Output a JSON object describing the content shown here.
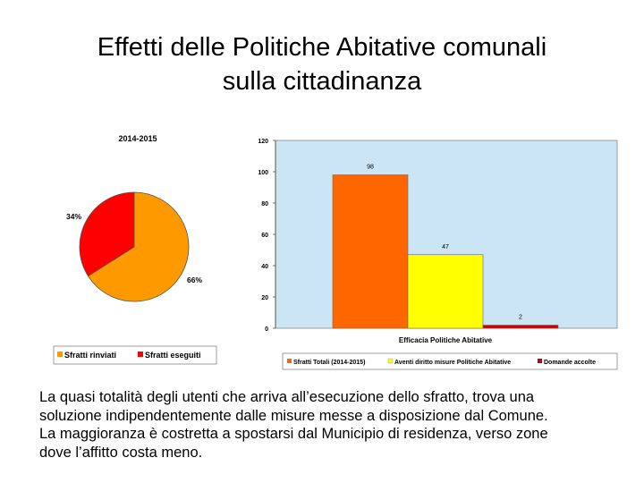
{
  "slide": {
    "title_line1": "Effetti delle Politiche Abitative comunali",
    "title_line2": "sulla cittadinanza"
  },
  "chart_data": [
    {
      "type": "pie",
      "title": "2014-2015",
      "slices": [
        {
          "name": "Sfratti rinviati",
          "value": 66,
          "label": "66%",
          "color": "#ff9900"
        },
        {
          "name": "Sfratti eseguiti",
          "value": 34,
          "label": "34%",
          "color": "#ff0000"
        }
      ],
      "legend": [
        "Sfratti rinviati",
        "Sfratti eseguiti"
      ],
      "legend_position": "bottom",
      "background": "#ffffff"
    },
    {
      "type": "bar",
      "title": "",
      "xlabel": "Efficacia Politiche Abitative",
      "ylabel": "",
      "ylim": [
        0,
        120
      ],
      "yticks": [
        0,
        20,
        40,
        60,
        80,
        100,
        120
      ],
      "series": [
        {
          "name": "Sfratti Totali (2014-2015)",
          "value": 98,
          "label": "98",
          "color": "#ff6600"
        },
        {
          "name": "Aventi diritto misure Politiche Abitative",
          "value": 47,
          "label": "47",
          "color": "#ffff00"
        },
        {
          "name": "Domande accolte",
          "value": 2,
          "label": "2",
          "color": "#cc0000"
        }
      ],
      "legend_position": "bottom",
      "plot_background": "#cce5f5",
      "grid": false
    }
  ],
  "caption": {
    "line1": "La quasi totalità degli utenti che arriva all’esecuzione dello sfratto, trova una",
    "line2": "soluzione indipendentemente dalle misure messe a disposizione dal Comune.",
    "line3": "La maggioranza è costretta a spostarsi dal Municipio di residenza, verso zone",
    "line4": "dove l’affitto costa meno."
  }
}
